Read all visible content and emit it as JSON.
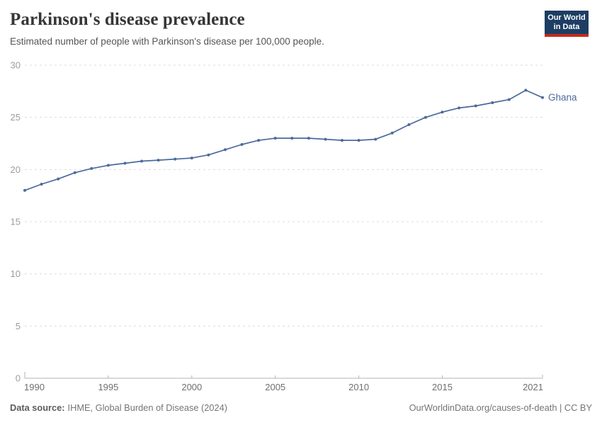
{
  "header": {
    "title": "Parkinson's disease prevalence",
    "subtitle": "Estimated number of people with Parkinson's disease per 100,000 people."
  },
  "logo": {
    "line1": "Our World",
    "line2": "in Data",
    "bg_color": "#1d3d63",
    "bar_color": "#c52a1e"
  },
  "chart_data": {
    "type": "line",
    "title": "Parkinson's disease prevalence",
    "subtitle": "Estimated number of people with Parkinson's disease per 100,000 people.",
    "xlabel": "",
    "ylabel": "",
    "xlim": [
      1990,
      2021
    ],
    "ylim": [
      0,
      30
    ],
    "xticks": [
      1990,
      1995,
      2000,
      2005,
      2010,
      2015,
      2021
    ],
    "yticks": [
      0,
      5,
      10,
      15,
      20,
      25,
      30
    ],
    "grid": "horizontal-dashed",
    "legend": "end-of-line-label",
    "grid_color": "#dcdcdc",
    "axis_color": "#b3b3b3",
    "ytick_label_color": "#9c9c9c",
    "xtick_label_color": "#6f6f6f",
    "series": [
      {
        "name": "Ghana",
        "color": "#4c6a9c",
        "x": [
          1990,
          1991,
          1992,
          1993,
          1994,
          1995,
          1996,
          1997,
          1998,
          1999,
          2000,
          2001,
          2002,
          2003,
          2004,
          2005,
          2006,
          2007,
          2008,
          2009,
          2010,
          2011,
          2012,
          2013,
          2014,
          2015,
          2016,
          2017,
          2018,
          2019,
          2020,
          2021
        ],
        "values": [
          18.0,
          18.6,
          19.1,
          19.7,
          20.1,
          20.4,
          20.6,
          20.8,
          20.9,
          21.0,
          21.1,
          21.4,
          21.9,
          22.4,
          22.8,
          23.0,
          23.0,
          23.0,
          22.9,
          22.8,
          22.8,
          22.9,
          23.5,
          24.3,
          25.0,
          25.5,
          25.9,
          26.1,
          26.4,
          26.7,
          27.6,
          26.9
        ]
      }
    ],
    "end_label": "Ghana"
  },
  "footer": {
    "source_label": "Data source:",
    "source_text": "IHME, Global Burden of Disease (2024)",
    "credit": "OurWorldinData.org/causes-of-death | CC BY"
  }
}
